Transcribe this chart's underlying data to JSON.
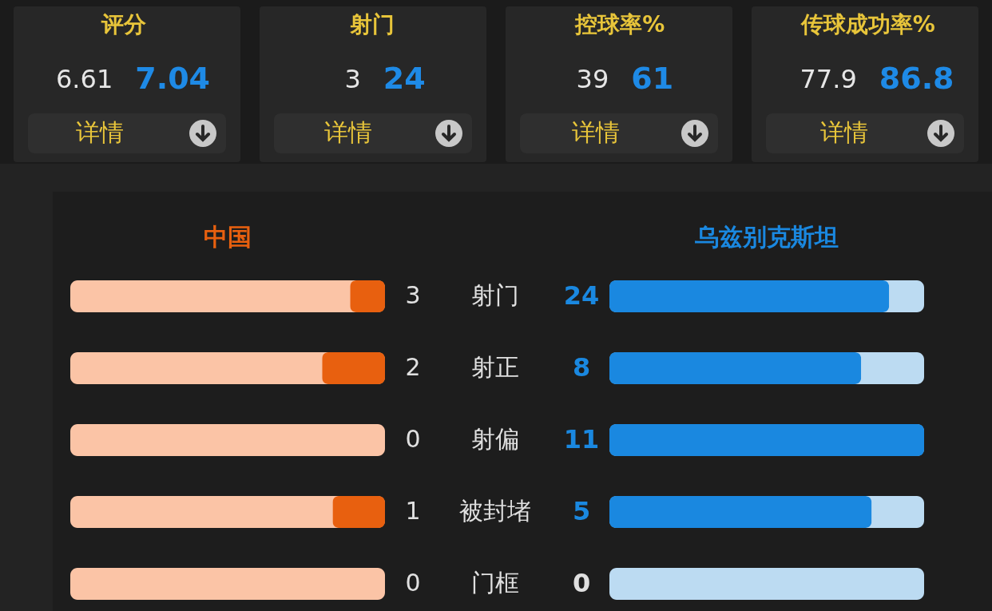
{
  "chart_data": [
    {
      "type": "other",
      "data_labels": true,
      "categories": [
        "评分",
        "射门",
        "控球率%",
        "传球成功率%"
      ],
      "series": [
        {
          "values": [
            6.61,
            3,
            39,
            77.9
          ]
        },
        {
          "values": [
            7.04,
            24,
            61,
            86.8
          ]
        }
      ],
      "annotations": [
        "详情",
        "详情",
        "详情",
        "详情"
      ]
    },
    {
      "type": "other",
      "data_labels": true,
      "categories": [
        "射门",
        "射正",
        "射偏",
        "被封堵",
        "门框"
      ],
      "series": [
        {
          "name": "中国",
          "color": "#e8600f",
          "values": [
            3,
            2,
            0,
            1,
            0
          ]
        },
        {
          "name": "乌兹别克斯坦",
          "color": "#1a88e0",
          "values": [
            24,
            8,
            11,
            5,
            0
          ]
        }
      ]
    }
  ]
}
